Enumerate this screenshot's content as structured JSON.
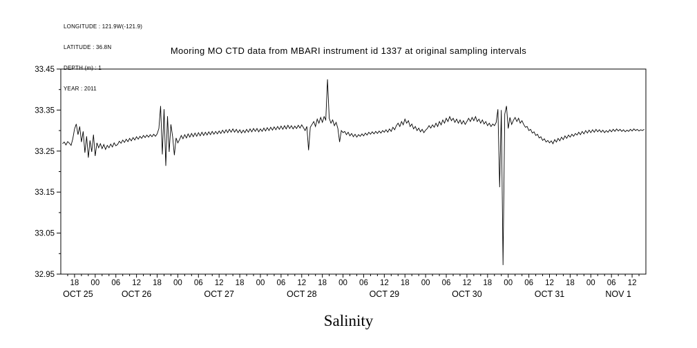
{
  "header_info": [
    "LONGITUDE : 121.9W(-121.9)",
    "LATITUDE : 36.8N",
    "DEPTH (m) : 1",
    "YEAR : 2011"
  ],
  "title": "Mooring MO CTD data from MBARI instrument id 1337 at original sampling intervals",
  "chart_data": {
    "type": "line",
    "title": "Mooring MO CTD data from MBARI instrument id 1337 at original sampling intervals",
    "ylabel": "Salinity",
    "line_color": "#000000",
    "grid": false,
    "x_axis": {
      "units": "hours since 2011-10-25 00:00",
      "range_hours": [
        14,
        184
      ],
      "ticks_t": [
        18,
        24,
        30,
        36,
        42,
        48,
        54,
        60,
        66,
        72,
        78,
        84,
        90,
        96,
        102,
        108,
        114,
        120,
        126,
        132,
        138,
        144,
        150,
        156,
        162,
        168,
        174,
        180
      ],
      "tick_labels": [
        "18",
        "00",
        "06",
        "12",
        "18",
        "00",
        "06",
        "12",
        "18",
        "00",
        "06",
        "12",
        "18",
        "00",
        "06",
        "12",
        "18",
        "00",
        "06",
        "12",
        "18",
        "00",
        "06",
        "12",
        "18",
        "00",
        "06",
        "12"
      ],
      "date_labels": [
        {
          "label": "OCT 25",
          "t": 19
        },
        {
          "label": "OCT 26",
          "t": 36
        },
        {
          "label": "OCT 27",
          "t": 60
        },
        {
          "label": "OCT 28",
          "t": 84
        },
        {
          "label": "OCT 29",
          "t": 108
        },
        {
          "label": "OCT 30",
          "t": 132
        },
        {
          "label": "OCT 31",
          "t": 156
        },
        {
          "label": "NOV 1",
          "t": 176
        }
      ]
    },
    "y_axis": {
      "range": [
        32.95,
        33.45
      ],
      "ticks": [
        33.45,
        33.35,
        33.25,
        33.15,
        33.05,
        32.95
      ],
      "minor_step": 0.05
    },
    "series": [
      {
        "name": "Salinity",
        "t0_hours": 14.5,
        "dt_hours": 0.5,
        "values": [
          33.268,
          33.272,
          33.265,
          33.273,
          33.269,
          33.264,
          33.28,
          33.304,
          33.316,
          33.29,
          33.31,
          33.272,
          33.298,
          33.246,
          33.286,
          33.234,
          33.276,
          33.248,
          33.29,
          33.238,
          33.27,
          33.258,
          33.268,
          33.256,
          33.266,
          33.254,
          33.264,
          33.258,
          33.267,
          33.26,
          33.27,
          33.263,
          33.266,
          33.274,
          33.269,
          33.277,
          33.271,
          33.279,
          33.273,
          33.281,
          33.275,
          33.283,
          33.277,
          33.285,
          33.279,
          33.286,
          33.281,
          33.288,
          33.283,
          33.289,
          33.284,
          33.29,
          33.285,
          33.291,
          33.286,
          33.292,
          33.305,
          33.36,
          33.242,
          33.352,
          33.214,
          33.335,
          33.248,
          33.315,
          33.285,
          33.24,
          33.282,
          33.27,
          33.278,
          33.288,
          33.28,
          33.29,
          33.282,
          33.292,
          33.284,
          33.293,
          33.285,
          33.294,
          33.286,
          33.295,
          33.287,
          33.296,
          33.288,
          33.296,
          33.289,
          33.297,
          33.29,
          33.298,
          33.291,
          33.298,
          33.292,
          33.299,
          33.293,
          33.301,
          33.294,
          33.302,
          33.295,
          33.303,
          33.296,
          33.304,
          33.296,
          33.303,
          33.295,
          33.302,
          33.294,
          33.301,
          33.295,
          33.303,
          33.296,
          33.304,
          33.297,
          33.305,
          33.298,
          33.305,
          33.297,
          33.304,
          33.298,
          33.306,
          33.299,
          33.307,
          33.3,
          33.308,
          33.301,
          33.309,
          33.302,
          33.31,
          33.303,
          33.311,
          33.303,
          33.312,
          33.304,
          33.313,
          33.305,
          33.312,
          33.304,
          33.311,
          33.305,
          33.313,
          33.306,
          33.314,
          33.307,
          33.3,
          33.31,
          33.252,
          33.308,
          33.315,
          33.322,
          33.31,
          33.328,
          33.318,
          33.332,
          33.32,
          33.334,
          33.326,
          33.425,
          33.33,
          33.318,
          33.326,
          33.312,
          33.32,
          33.305,
          33.272,
          33.3,
          33.295,
          33.298,
          33.29,
          33.296,
          33.287,
          33.293,
          33.285,
          33.291,
          33.284,
          33.29,
          33.286,
          33.292,
          33.287,
          33.294,
          33.289,
          33.296,
          33.291,
          33.297,
          33.292,
          33.298,
          33.293,
          33.299,
          33.294,
          33.3,
          33.296,
          33.302,
          33.296,
          33.304,
          33.298,
          33.308,
          33.302,
          33.312,
          33.318,
          33.31,
          33.322,
          33.314,
          33.328,
          33.318,
          33.324,
          33.31,
          33.316,
          33.304,
          33.31,
          33.3,
          33.306,
          33.297,
          33.303,
          33.295,
          33.301,
          33.305,
          33.312,
          33.306,
          33.314,
          33.308,
          33.318,
          33.31,
          33.322,
          33.314,
          33.326,
          33.318,
          33.33,
          33.322,
          33.334,
          33.324,
          33.33,
          33.32,
          33.328,
          33.318,
          33.326,
          33.316,
          33.324,
          33.315,
          33.322,
          33.33,
          33.322,
          33.332,
          33.324,
          33.334,
          33.322,
          33.328,
          33.318,
          33.326,
          33.316,
          33.322,
          33.312,
          33.318,
          33.31,
          33.316,
          33.312,
          33.32,
          33.352,
          33.162,
          33.35,
          32.972,
          33.34,
          33.36,
          33.305,
          33.332,
          33.315,
          33.325,
          33.332,
          33.322,
          33.33,
          33.318,
          33.324,
          33.315,
          33.308,
          33.31,
          33.3,
          33.303,
          33.294,
          33.297,
          33.288,
          33.291,
          33.282,
          33.285,
          33.276,
          33.28,
          33.272,
          33.276,
          33.27,
          33.275,
          33.268,
          33.278,
          33.272,
          33.281,
          33.275,
          33.284,
          33.278,
          33.287,
          33.281,
          33.289,
          33.284,
          33.291,
          33.286,
          33.293,
          33.289,
          33.296,
          33.29,
          33.298,
          33.292,
          33.3,
          33.294,
          33.301,
          33.295,
          33.302,
          33.296,
          33.303,
          33.297,
          33.302,
          33.296,
          33.301,
          33.295,
          33.3,
          33.296,
          33.302,
          33.297,
          33.303,
          33.298,
          33.304,
          33.299,
          33.303,
          33.298,
          33.302,
          33.297,
          33.301,
          33.298,
          33.303,
          33.299,
          33.304,
          33.3,
          33.303,
          33.299,
          33.302,
          33.3,
          33.303
        ]
      }
    ]
  }
}
